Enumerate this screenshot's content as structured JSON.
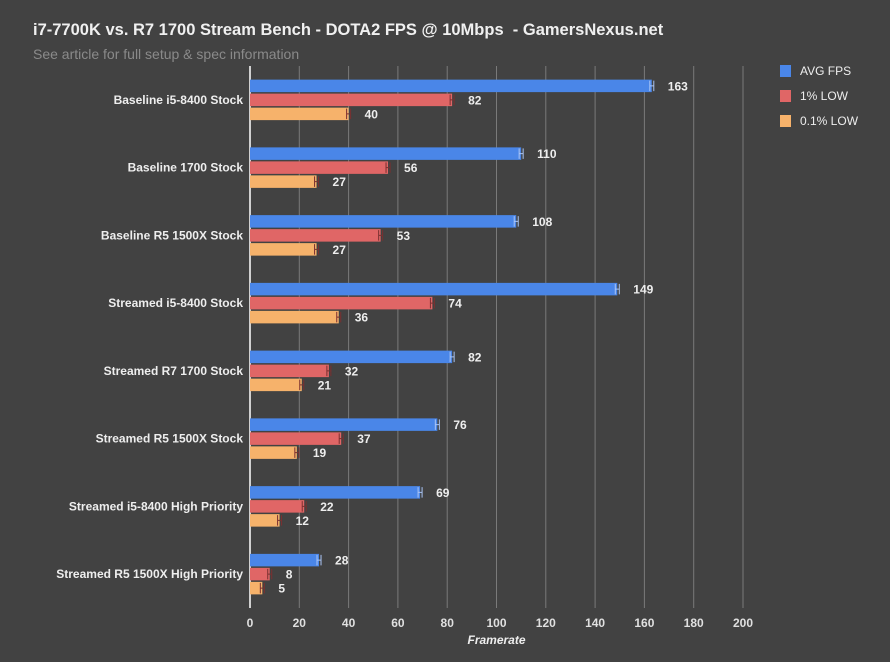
{
  "chart_data": {
    "type": "bar",
    "orientation": "horizontal",
    "title": "i7-7700K vs. R7 1700 Stream Bench - DOTA2 FPS @ 10Mbps  - GamersNexus.net",
    "subtitle": "See article for full setup & spec information",
    "xlabel": "Framerate",
    "ylabel": "",
    "xlim": [
      0,
      200
    ],
    "xticks": [
      0,
      20,
      40,
      60,
      80,
      100,
      120,
      140,
      160,
      180,
      200
    ],
    "grid": true,
    "legend_position": "top-right",
    "categories": [
      "Baseline i5-8400 Stock",
      "Baseline 1700 Stock",
      "Baseline R5 1500X Stock",
      "Streamed i5-8400 Stock",
      "Streamed R7 1700 Stock",
      "Streamed R5 1500X Stock",
      "Streamed i5-8400 High Priority",
      "Streamed R5 1500X High Priority"
    ],
    "series": [
      {
        "name": "AVG FPS",
        "color": "#4a86e8",
        "values": [
          163,
          110,
          108,
          149,
          82,
          76,
          69,
          28
        ]
      },
      {
        "name": "1% LOW",
        "color": "#e06666",
        "values": [
          82,
          56,
          53,
          74,
          32,
          37,
          22,
          8
        ]
      },
      {
        "name": "0.1% LOW",
        "color": "#f6b26b",
        "values": [
          40,
          27,
          27,
          36,
          21,
          19,
          12,
          5
        ]
      }
    ]
  }
}
